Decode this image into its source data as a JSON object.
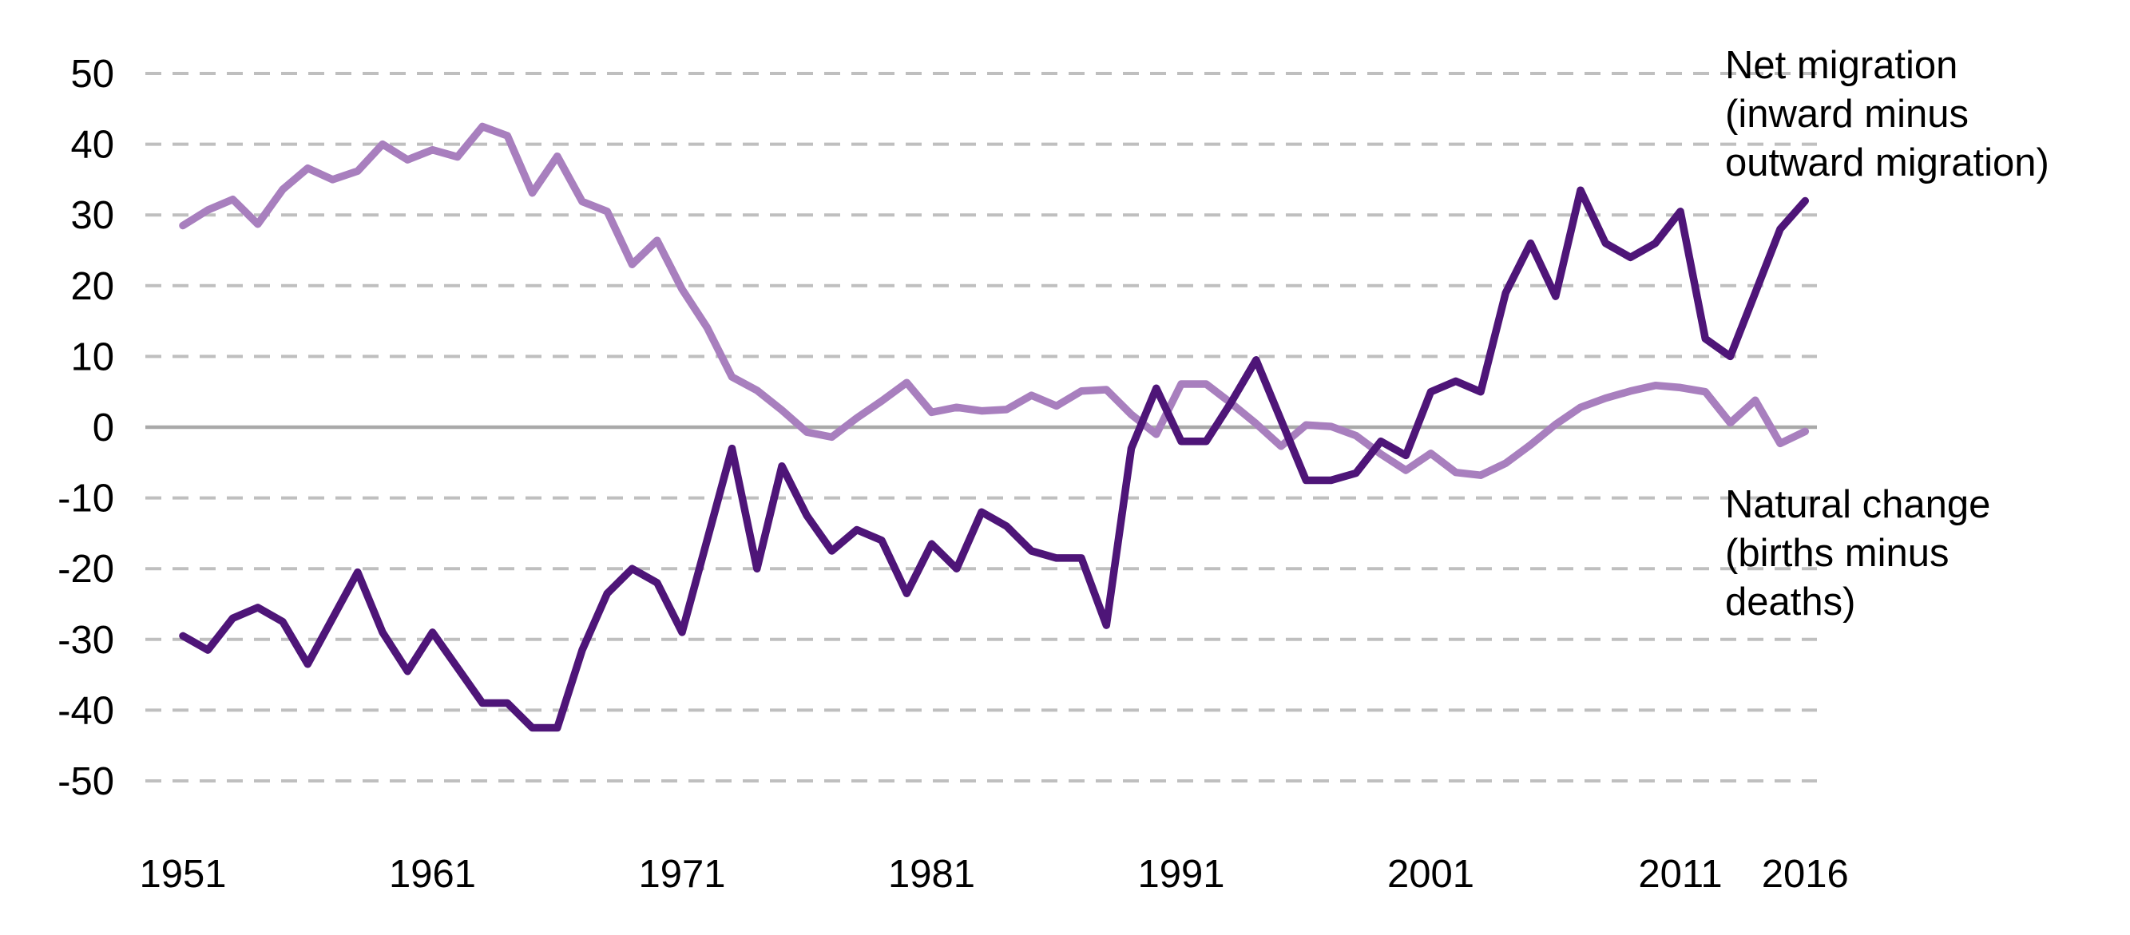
{
  "chart_data": {
    "type": "line",
    "title": "",
    "xlabel": "",
    "ylabel": "",
    "ylim": [
      -50,
      50
    ],
    "ytick_interval": 10,
    "grid": "horizontal-dashed",
    "legend_position": "right-inline-annotations",
    "x": [
      1951,
      1952,
      1953,
      1954,
      1955,
      1956,
      1957,
      1958,
      1959,
      1960,
      1961,
      1962,
      1963,
      1964,
      1965,
      1966,
      1967,
      1968,
      1969,
      1970,
      1971,
      1972,
      1973,
      1974,
      1975,
      1976,
      1977,
      1978,
      1979,
      1980,
      1981,
      1982,
      1983,
      1984,
      1985,
      1986,
      1987,
      1988,
      1989,
      1990,
      1991,
      1992,
      1993,
      1994,
      1995,
      1996,
      1997,
      1998,
      1999,
      2000,
      2001,
      2002,
      2003,
      2004,
      2005,
      2006,
      2007,
      2008,
      2009,
      2010,
      2011,
      2012,
      2013,
      2014,
      2015,
      2016
    ],
    "xticks": [
      1951,
      1961,
      1971,
      1981,
      1991,
      2001,
      2011,
      2016
    ],
    "series": [
      {
        "name": "Net migration (inward minus outward migration)",
        "color": "#4e1578",
        "values": [
          -29.5,
          -31.5,
          -27,
          -25.5,
          -27.5,
          -33.5,
          -27,
          -20.5,
          -29,
          -34.5,
          -29,
          -34,
          -39,
          -39,
          -42.5,
          -42.5,
          -31.5,
          -23.5,
          -20,
          -22,
          -29,
          -16,
          -3,
          -20,
          -5.5,
          -12.5,
          -17.5,
          -14.5,
          -16,
          -23.5,
          -16.5,
          -20,
          -12,
          -14,
          -17.5,
          -18.5,
          -18.5,
          -28,
          -3,
          5.5,
          -2,
          -2,
          3.5,
          9.5,
          1,
          -7.5,
          -7.5,
          -6.5,
          -2,
          -4,
          5,
          6.5,
          5,
          19,
          26,
          18.5,
          33.5,
          26,
          24,
          26,
          30.5,
          12.5,
          10,
          19,
          28,
          32
        ]
      },
      {
        "name": "Natural change (births minus deaths)",
        "color": "#a87fbe",
        "values": [
          28.5,
          30.7,
          32.2,
          28.7,
          33.6,
          36.6,
          35,
          36.2,
          40,
          37.8,
          39.2,
          38.2,
          42.5,
          41.2,
          33.1,
          38.3,
          31.9,
          30.5,
          23,
          26.4,
          19.5,
          14.1,
          7.1,
          5.2,
          2.4,
          -0.7,
          -1.4,
          1.3,
          3.7,
          6.3,
          2.1,
          2.8,
          2.3,
          2.5,
          4.5,
          3,
          5.1,
          5.3,
          1.8,
          -1,
          6.1,
          6.1,
          3.4,
          0.5,
          -2.7,
          0.3,
          0.1,
          -1.2,
          -3.8,
          -6.1,
          -3.7,
          -6.4,
          -6.8,
          -5.1,
          -2.5,
          0.4,
          2.8,
          4.1,
          5.1,
          5.9,
          5.6,
          5,
          0.6,
          3.8,
          -2.3,
          -0.6
        ]
      }
    ]
  },
  "axes": {
    "ytick_labels": [
      "50",
      "40",
      "30",
      "20",
      "10",
      "0",
      "-10",
      "-20",
      "-30",
      "-40",
      "-50"
    ],
    "xtick_labels": [
      "1951",
      "1961",
      "1971",
      "1981",
      "1991",
      "2001",
      "2011",
      "2016"
    ]
  },
  "annotations": {
    "net_migration_label": "Net migration\n(inward minus\noutward migration)",
    "natural_change_label": "Natural change\n(births minus\ndeaths)"
  },
  "colors": {
    "net_migration_line": "#4e1578",
    "natural_change_line": "#a87fbe",
    "gridline": "#bfbfbf",
    "zero_line": "#a9a9a9",
    "text": "#000000",
    "background": "#ffffff"
  }
}
